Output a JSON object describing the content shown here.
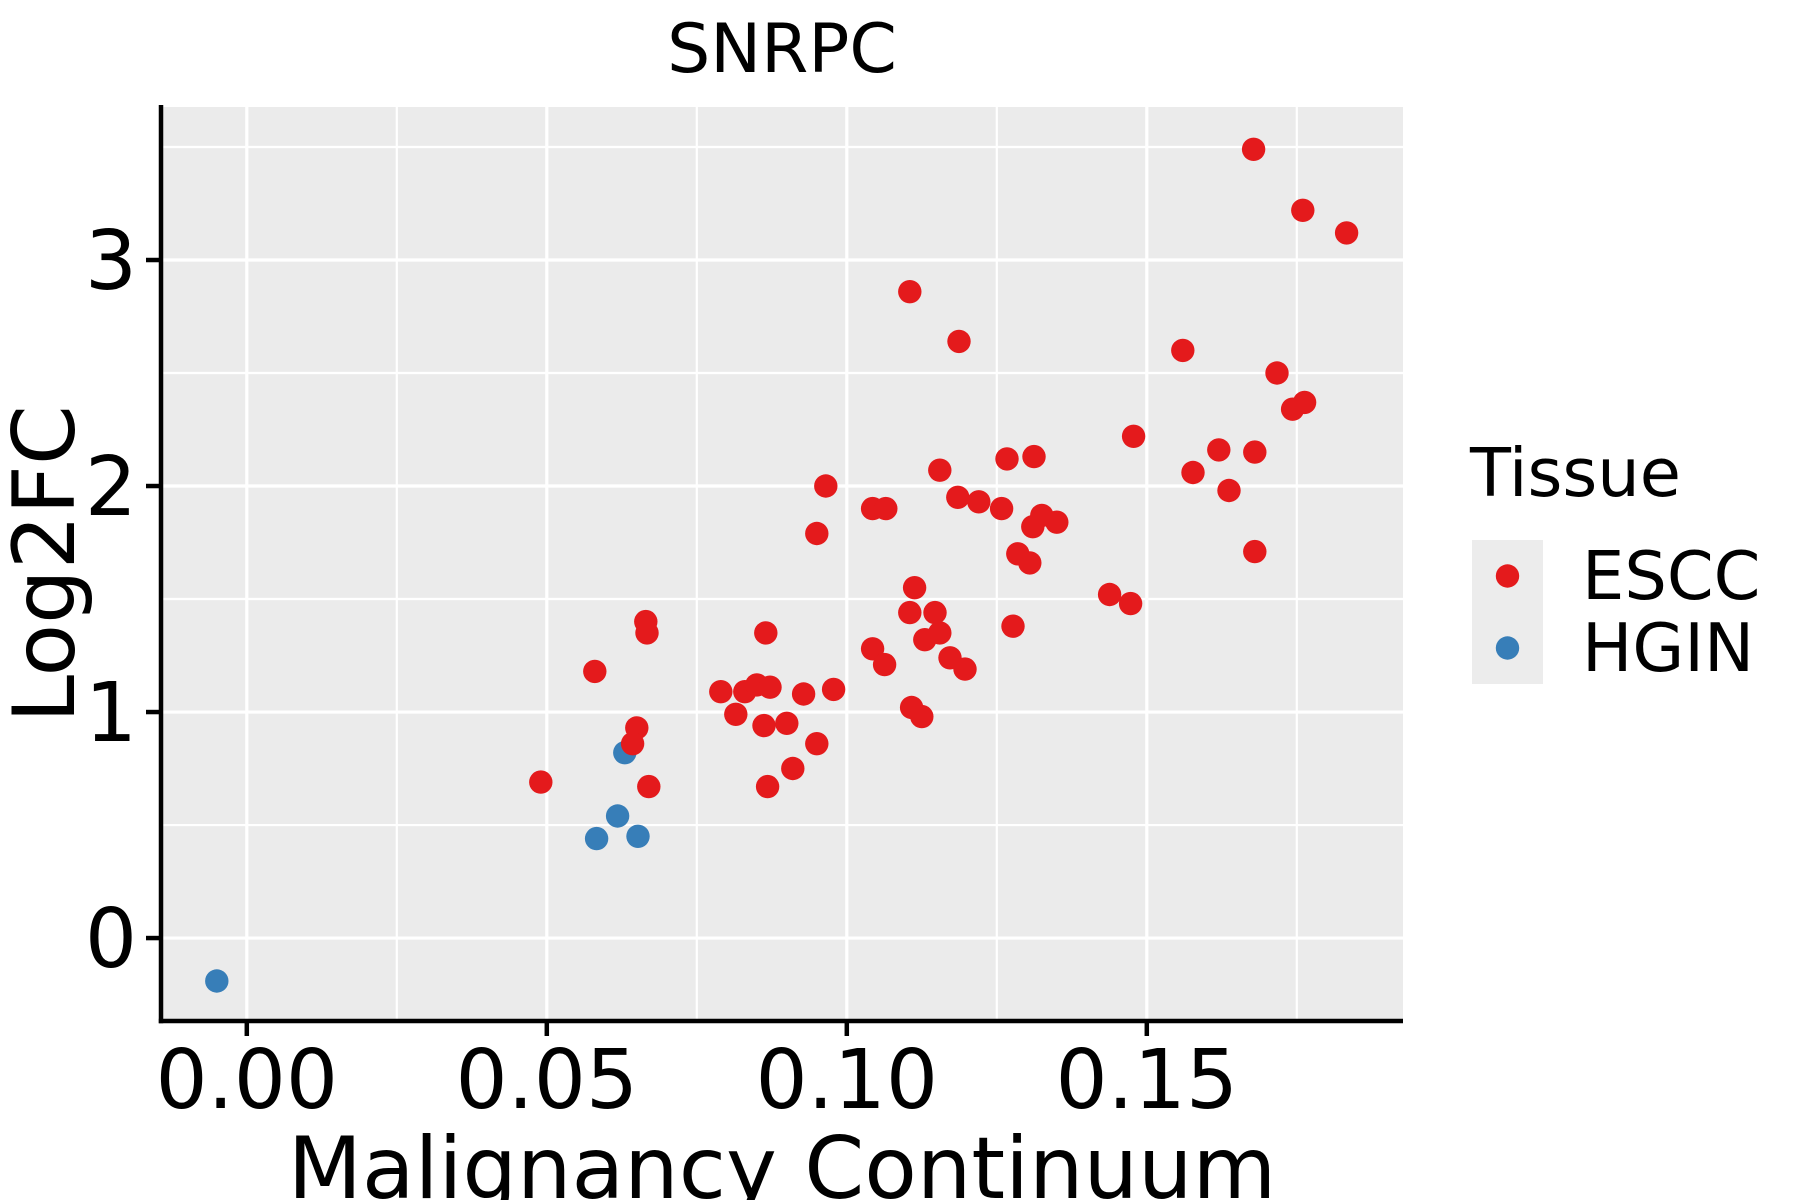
{
  "title": "SNRPC",
  "axes": {
    "x_label": "Malignancy Continuum",
    "y_label": "Log2FC",
    "x_ticks": [
      0.0,
      0.05,
      0.1,
      0.15
    ],
    "x_tick_labels": [
      "0.00",
      "0.05",
      "0.10",
      "0.15"
    ],
    "x_minor": [
      0.025,
      0.075,
      0.125,
      0.175
    ],
    "y_ticks": [
      0,
      1,
      2,
      3
    ],
    "y_tick_labels": [
      "0",
      "1",
      "2",
      "3"
    ],
    "y_minor": [
      0.5,
      1.5,
      2.5,
      3.5
    ]
  },
  "legend": {
    "title": "Tissue",
    "entries": [
      {
        "label": "ESCC",
        "color": "#E41A1C"
      },
      {
        "label": "HGIN",
        "color": "#377EB8"
      }
    ]
  },
  "colors": {
    "panel_bg": "#EBEBEB",
    "grid": "#FFFFFF",
    "axis": "#000000",
    "text": "#000000",
    "legend_key_bg": "#ECECEC",
    "escc": "#E41A1C",
    "hgin": "#377EB8"
  },
  "chart_data": {
    "type": "scatter",
    "title": "SNRPC",
    "xlabel": "Malignancy Continuum",
    "ylabel": "Log2FC",
    "xlim": [
      -0.0143,
      0.1927
    ],
    "ylim": [
      -0.367,
      3.677
    ],
    "grid": true,
    "legend_position": "right",
    "point_radius_px": 11.7,
    "series": [
      {
        "name": "ESCC",
        "color": "#E41A1C",
        "points": [
          [
            0.049,
            0.69
          ],
          [
            0.058,
            1.18
          ],
          [
            0.0665,
            1.4
          ],
          [
            0.0667,
            1.35
          ],
          [
            0.065,
            0.93
          ],
          [
            0.0643,
            0.86
          ],
          [
            0.067,
            0.67
          ],
          [
            0.0865,
            1.35
          ],
          [
            0.079,
            1.09
          ],
          [
            0.083,
            1.09
          ],
          [
            0.085,
            1.12
          ],
          [
            0.0872,
            1.11
          ],
          [
            0.0928,
            1.08
          ],
          [
            0.0978,
            1.1
          ],
          [
            0.0815,
            0.99
          ],
          [
            0.0862,
            0.94
          ],
          [
            0.09,
            0.95
          ],
          [
            0.095,
            0.86
          ],
          [
            0.091,
            0.75
          ],
          [
            0.0868,
            0.67
          ],
          [
            0.0965,
            2.0
          ],
          [
            0.095,
            1.79
          ],
          [
            0.1043,
            1.9
          ],
          [
            0.1065,
            1.9
          ],
          [
            0.1105,
            2.86
          ],
          [
            0.1187,
            2.64
          ],
          [
            0.1155,
            2.07
          ],
          [
            0.1185,
            1.95
          ],
          [
            0.122,
            1.93
          ],
          [
            0.1258,
            1.9
          ],
          [
            0.1325,
            1.87
          ],
          [
            0.135,
            1.84
          ],
          [
            0.131,
            1.82
          ],
          [
            0.1285,
            1.7
          ],
          [
            0.1305,
            1.66
          ],
          [
            0.1267,
            2.12
          ],
          [
            0.1312,
            2.13
          ],
          [
            0.1478,
            2.22
          ],
          [
            0.1113,
            1.55
          ],
          [
            0.1105,
            1.44
          ],
          [
            0.1147,
            1.44
          ],
          [
            0.113,
            1.32
          ],
          [
            0.1155,
            1.35
          ],
          [
            0.1172,
            1.24
          ],
          [
            0.1197,
            1.19
          ],
          [
            0.1043,
            1.28
          ],
          [
            0.1063,
            1.21
          ],
          [
            0.1108,
            1.02
          ],
          [
            0.1125,
            0.98
          ],
          [
            0.1277,
            1.38
          ],
          [
            0.1438,
            1.52
          ],
          [
            0.1473,
            1.48
          ],
          [
            0.156,
            2.6
          ],
          [
            0.1717,
            2.5
          ],
          [
            0.1763,
            2.37
          ],
          [
            0.1743,
            2.34
          ],
          [
            0.162,
            2.16
          ],
          [
            0.168,
            2.15
          ],
          [
            0.1577,
            2.06
          ],
          [
            0.1637,
            1.98
          ],
          [
            0.168,
            1.71
          ],
          [
            0.1678,
            3.49
          ],
          [
            0.176,
            3.22
          ],
          [
            0.1833,
            3.12
          ]
        ]
      },
      {
        "name": "HGIN",
        "color": "#377EB8",
        "points": [
          [
            -0.005,
            -0.19
          ],
          [
            0.063,
            0.82
          ],
          [
            0.0618,
            0.54
          ],
          [
            0.0583,
            0.44
          ],
          [
            0.0652,
            0.45
          ]
        ]
      }
    ]
  }
}
